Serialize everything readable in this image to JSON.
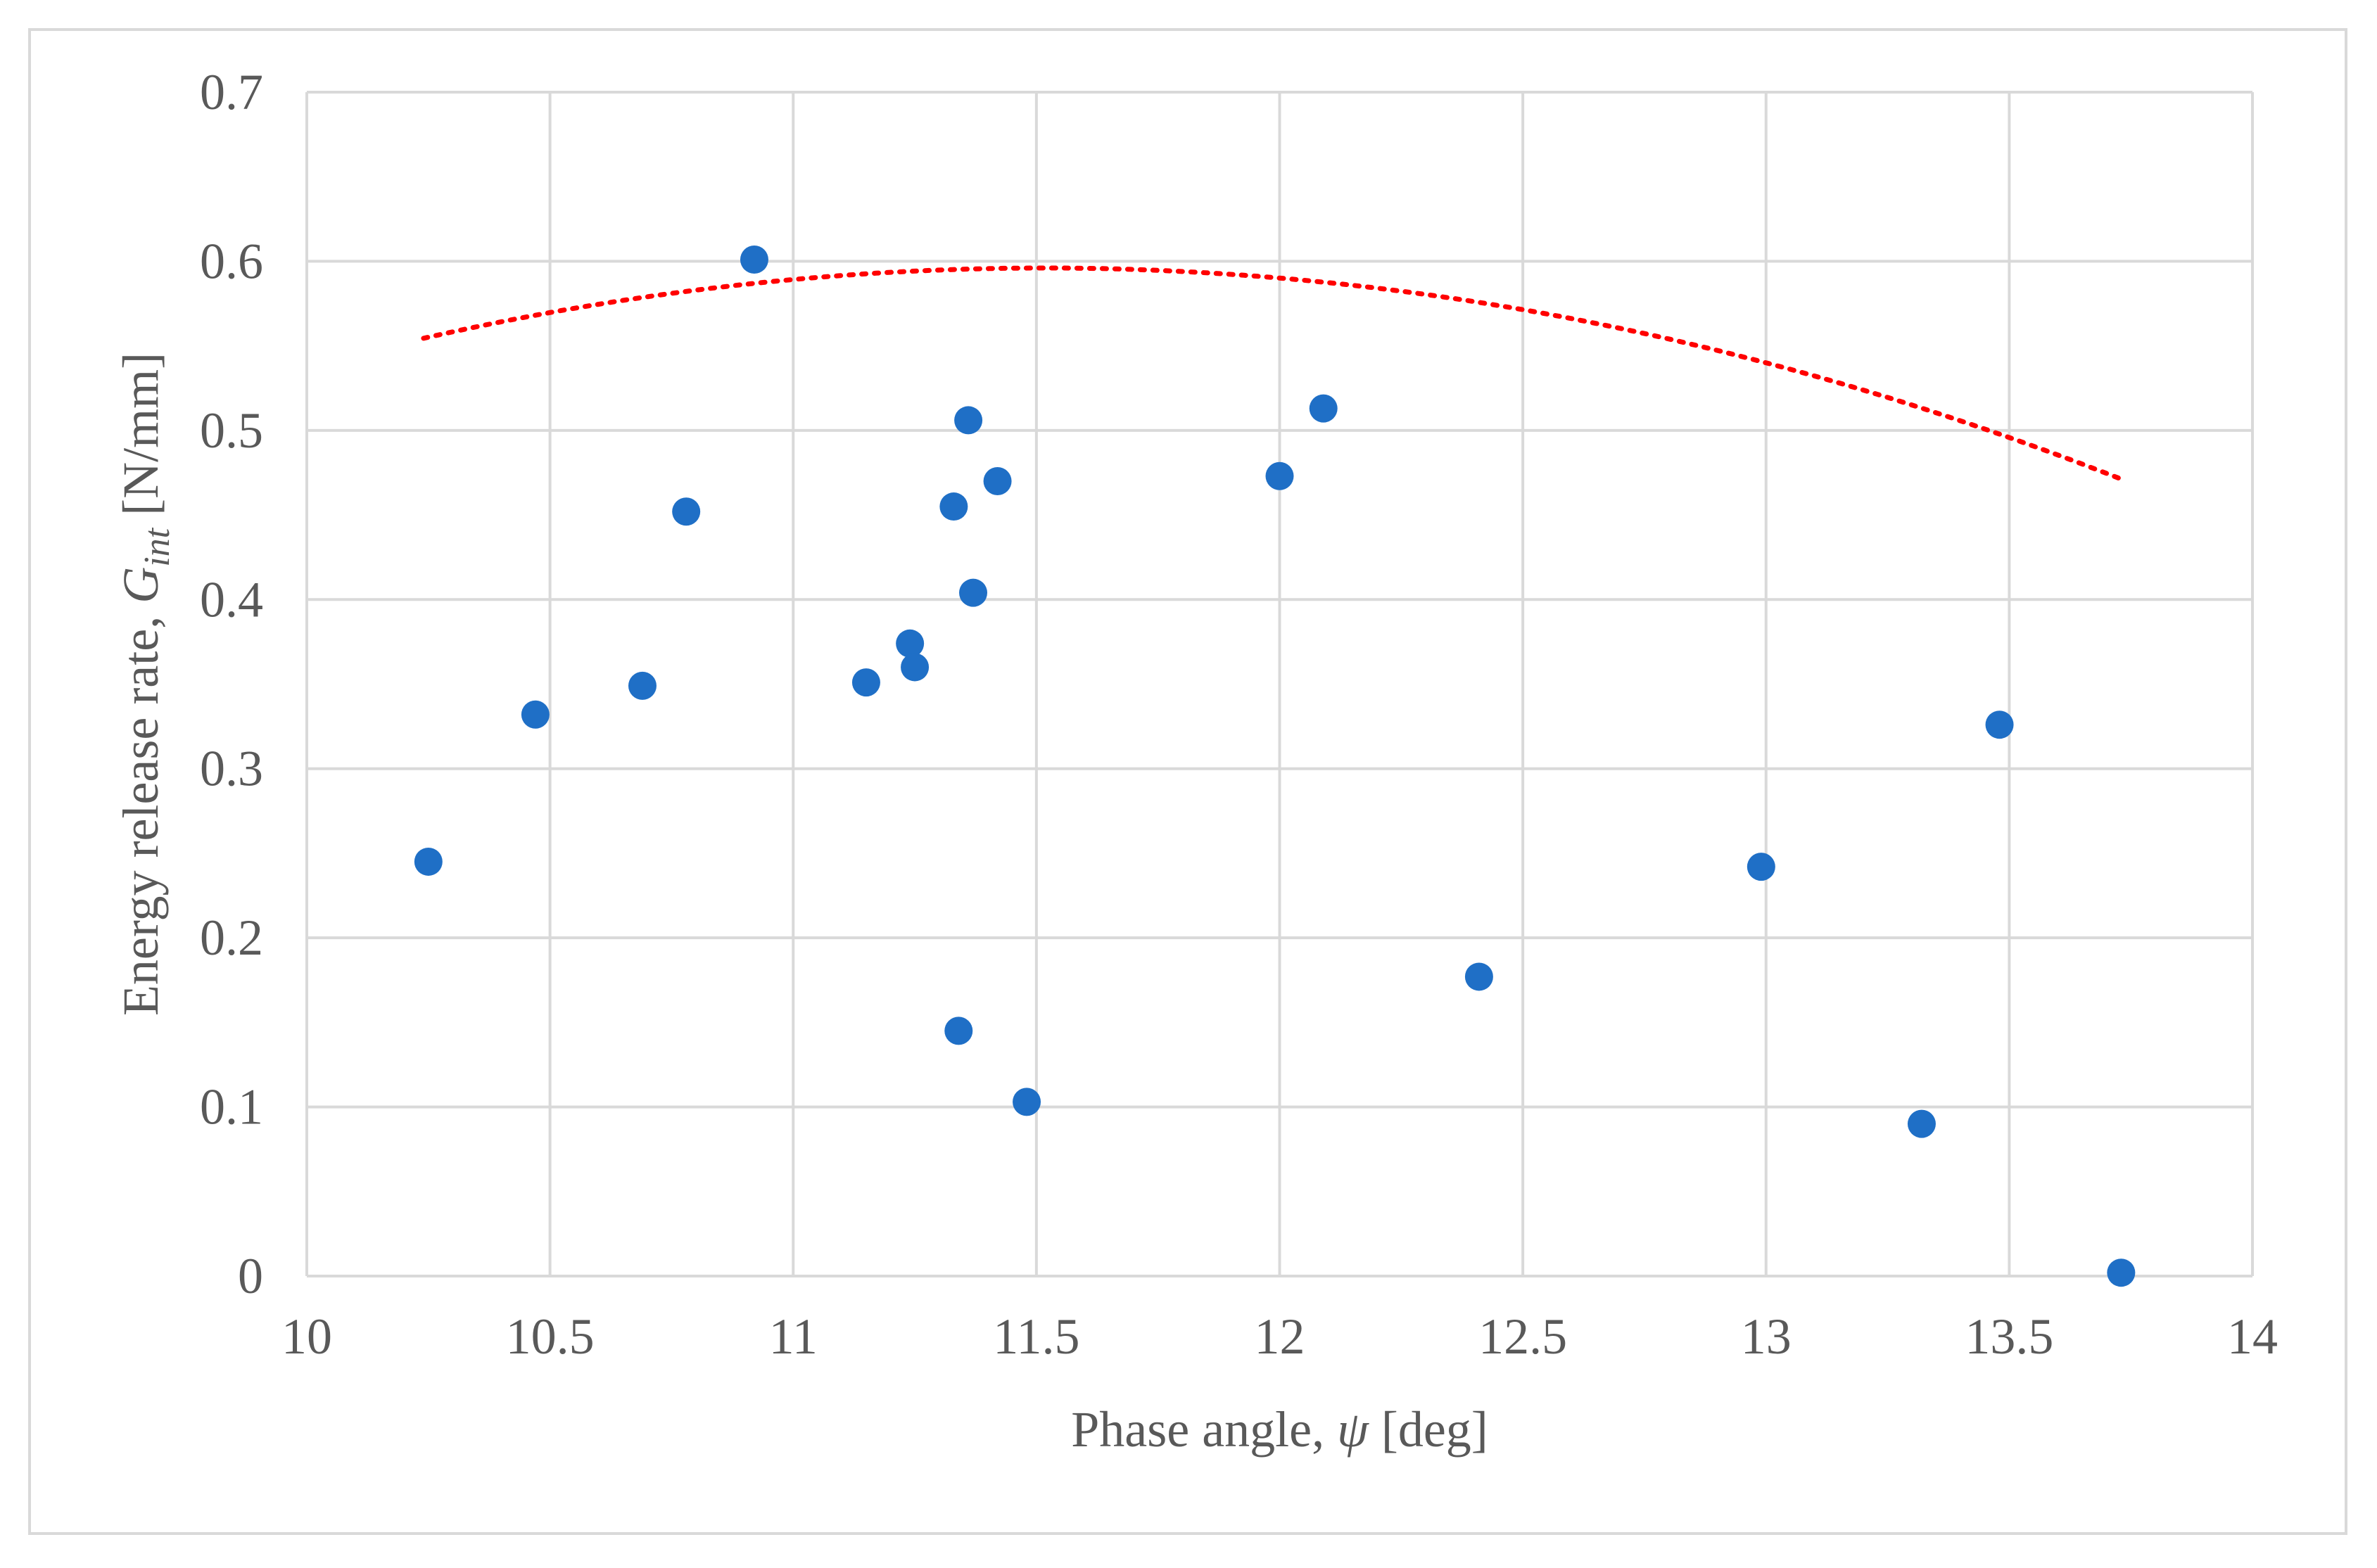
{
  "chart_data": {
    "type": "scatter",
    "title": "",
    "xlabel": "Phase angle, ψ [deg]",
    "ylabel": "Energy release rate, G_int [N/mm]",
    "xlabel_parts": {
      "before": "Phase angle, ",
      "symbol": "ψ",
      "after": " [deg]"
    },
    "ylabel_parts": {
      "before": "Energy release rate, ",
      "symbol": "G",
      "subscript": "int",
      "after": " [N/mm]"
    },
    "xlim": [
      10,
      14
    ],
    "ylim": [
      0,
      0.7
    ],
    "x_ticks": [
      10,
      10.5,
      11,
      11.5,
      12,
      12.5,
      13,
      13.5,
      14
    ],
    "y_ticks": [
      0,
      0.1,
      0.2,
      0.3,
      0.4,
      0.5,
      0.6,
      0.7
    ],
    "x_tick_labels": [
      "10",
      "10.5",
      "11",
      "11.5",
      "12",
      "12.5",
      "13",
      "13.5",
      "14"
    ],
    "y_tick_labels": [
      "0",
      "0.1",
      "0.2",
      "0.3",
      "0.4",
      "0.5",
      "0.6",
      "0.7"
    ],
    "grid": true,
    "legend": "none",
    "series": [
      {
        "points": [
          [
            10.25,
            0.245
          ],
          [
            10.47,
            0.332
          ],
          [
            10.69,
            0.349
          ],
          [
            10.78,
            0.452
          ],
          [
            10.92,
            0.601
          ],
          [
            11.15,
            0.351
          ],
          [
            11.24,
            0.374
          ],
          [
            11.25,
            0.36
          ],
          [
            11.33,
            0.455
          ],
          [
            11.34,
            0.145
          ],
          [
            11.36,
            0.506
          ],
          [
            11.37,
            0.404
          ],
          [
            11.42,
            0.47
          ],
          [
            11.48,
            0.103
          ],
          [
            12.0,
            0.473
          ],
          [
            12.09,
            0.513
          ],
          [
            12.41,
            0.177
          ],
          [
            12.99,
            0.242
          ],
          [
            13.32,
            0.09
          ],
          [
            13.48,
            0.326
          ],
          [
            13.73,
            0.002
          ]
        ],
        "color": "#1f6fc6"
      }
    ],
    "trendline": {
      "type": "polynomial",
      "order": 2,
      "style": "dotted",
      "color": "#ff0000",
      "x_range": [
        10.24,
        13.73
      ],
      "coefficients": [
        -2.7836,
        0.5869,
        -0.02548
      ]
    }
  }
}
